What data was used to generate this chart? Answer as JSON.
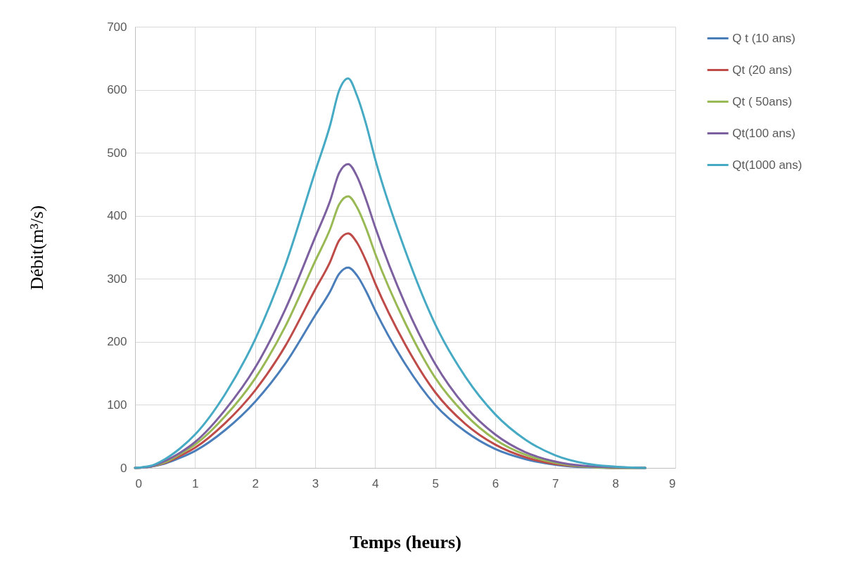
{
  "chart_data": {
    "type": "line",
    "xlabel": "Temps (heurs)",
    "ylabel": "Débit(m³/s)",
    "x": [
      0,
      0.25,
      0.5,
      0.75,
      1,
      1.5,
      2,
      2.5,
      3,
      3.25,
      3.4,
      3.55,
      3.7,
      3.85,
      4,
      4.5,
      5,
      5.5,
      6,
      6.5,
      7,
      7.5,
      8,
      8.5
    ],
    "series": [
      {
        "name": "Q t (10 ans)",
        "color": "#4a7ebb",
        "values": [
          0,
          2,
          7,
          16,
          27,
          60,
          105,
          165,
          242,
          280,
          308,
          318,
          305,
          280,
          250,
          165,
          100,
          58,
          30,
          14,
          5,
          1,
          0,
          0
        ]
      },
      {
        "name": "Qt (20 ans)",
        "color": "#be4b48",
        "values": [
          0,
          2,
          8,
          19,
          32,
          71,
          123,
          193,
          283,
          327,
          361,
          372,
          357,
          328,
          293,
          196,
          120,
          70,
          37,
          17,
          6,
          2,
          0,
          0
        ]
      },
      {
        "name": "Qt ( 50ans)",
        "color": "#98b954",
        "values": [
          0,
          2,
          9,
          22,
          37,
          82,
          142,
          224,
          328,
          379,
          418,
          431,
          413,
          380,
          340,
          230,
          143,
          85,
          45,
          21,
          8,
          2,
          0,
          0
        ]
      },
      {
        "name": "Qt(100 ans)",
        "color": "#7d60a0",
        "values": [
          0,
          2,
          11,
          24,
          41,
          92,
          159,
          251,
          366,
          424,
          468,
          482,
          462,
          425,
          382,
          260,
          165,
          98,
          53,
          25,
          10,
          3,
          1,
          0
        ]
      },
      {
        "name": "Qt(1000 ans)",
        "color": "#46aac5",
        "values": [
          0,
          3,
          14,
          31,
          53,
          117,
          204,
          321,
          470,
          544,
          599,
          618,
          590,
          545,
          490,
          345,
          228,
          145,
          85,
          45,
          20,
          7,
          2,
          0
        ]
      }
    ],
    "xlim": [
      0,
      9
    ],
    "ylim": [
      0,
      700
    ],
    "xticks": [
      0,
      1,
      2,
      3,
      4,
      5,
      6,
      7,
      8,
      9
    ],
    "yticks": [
      0,
      100,
      200,
      300,
      400,
      500,
      600,
      700
    ],
    "grid": true,
    "legend": "right",
    "marker": "none",
    "line_style": "solid"
  }
}
